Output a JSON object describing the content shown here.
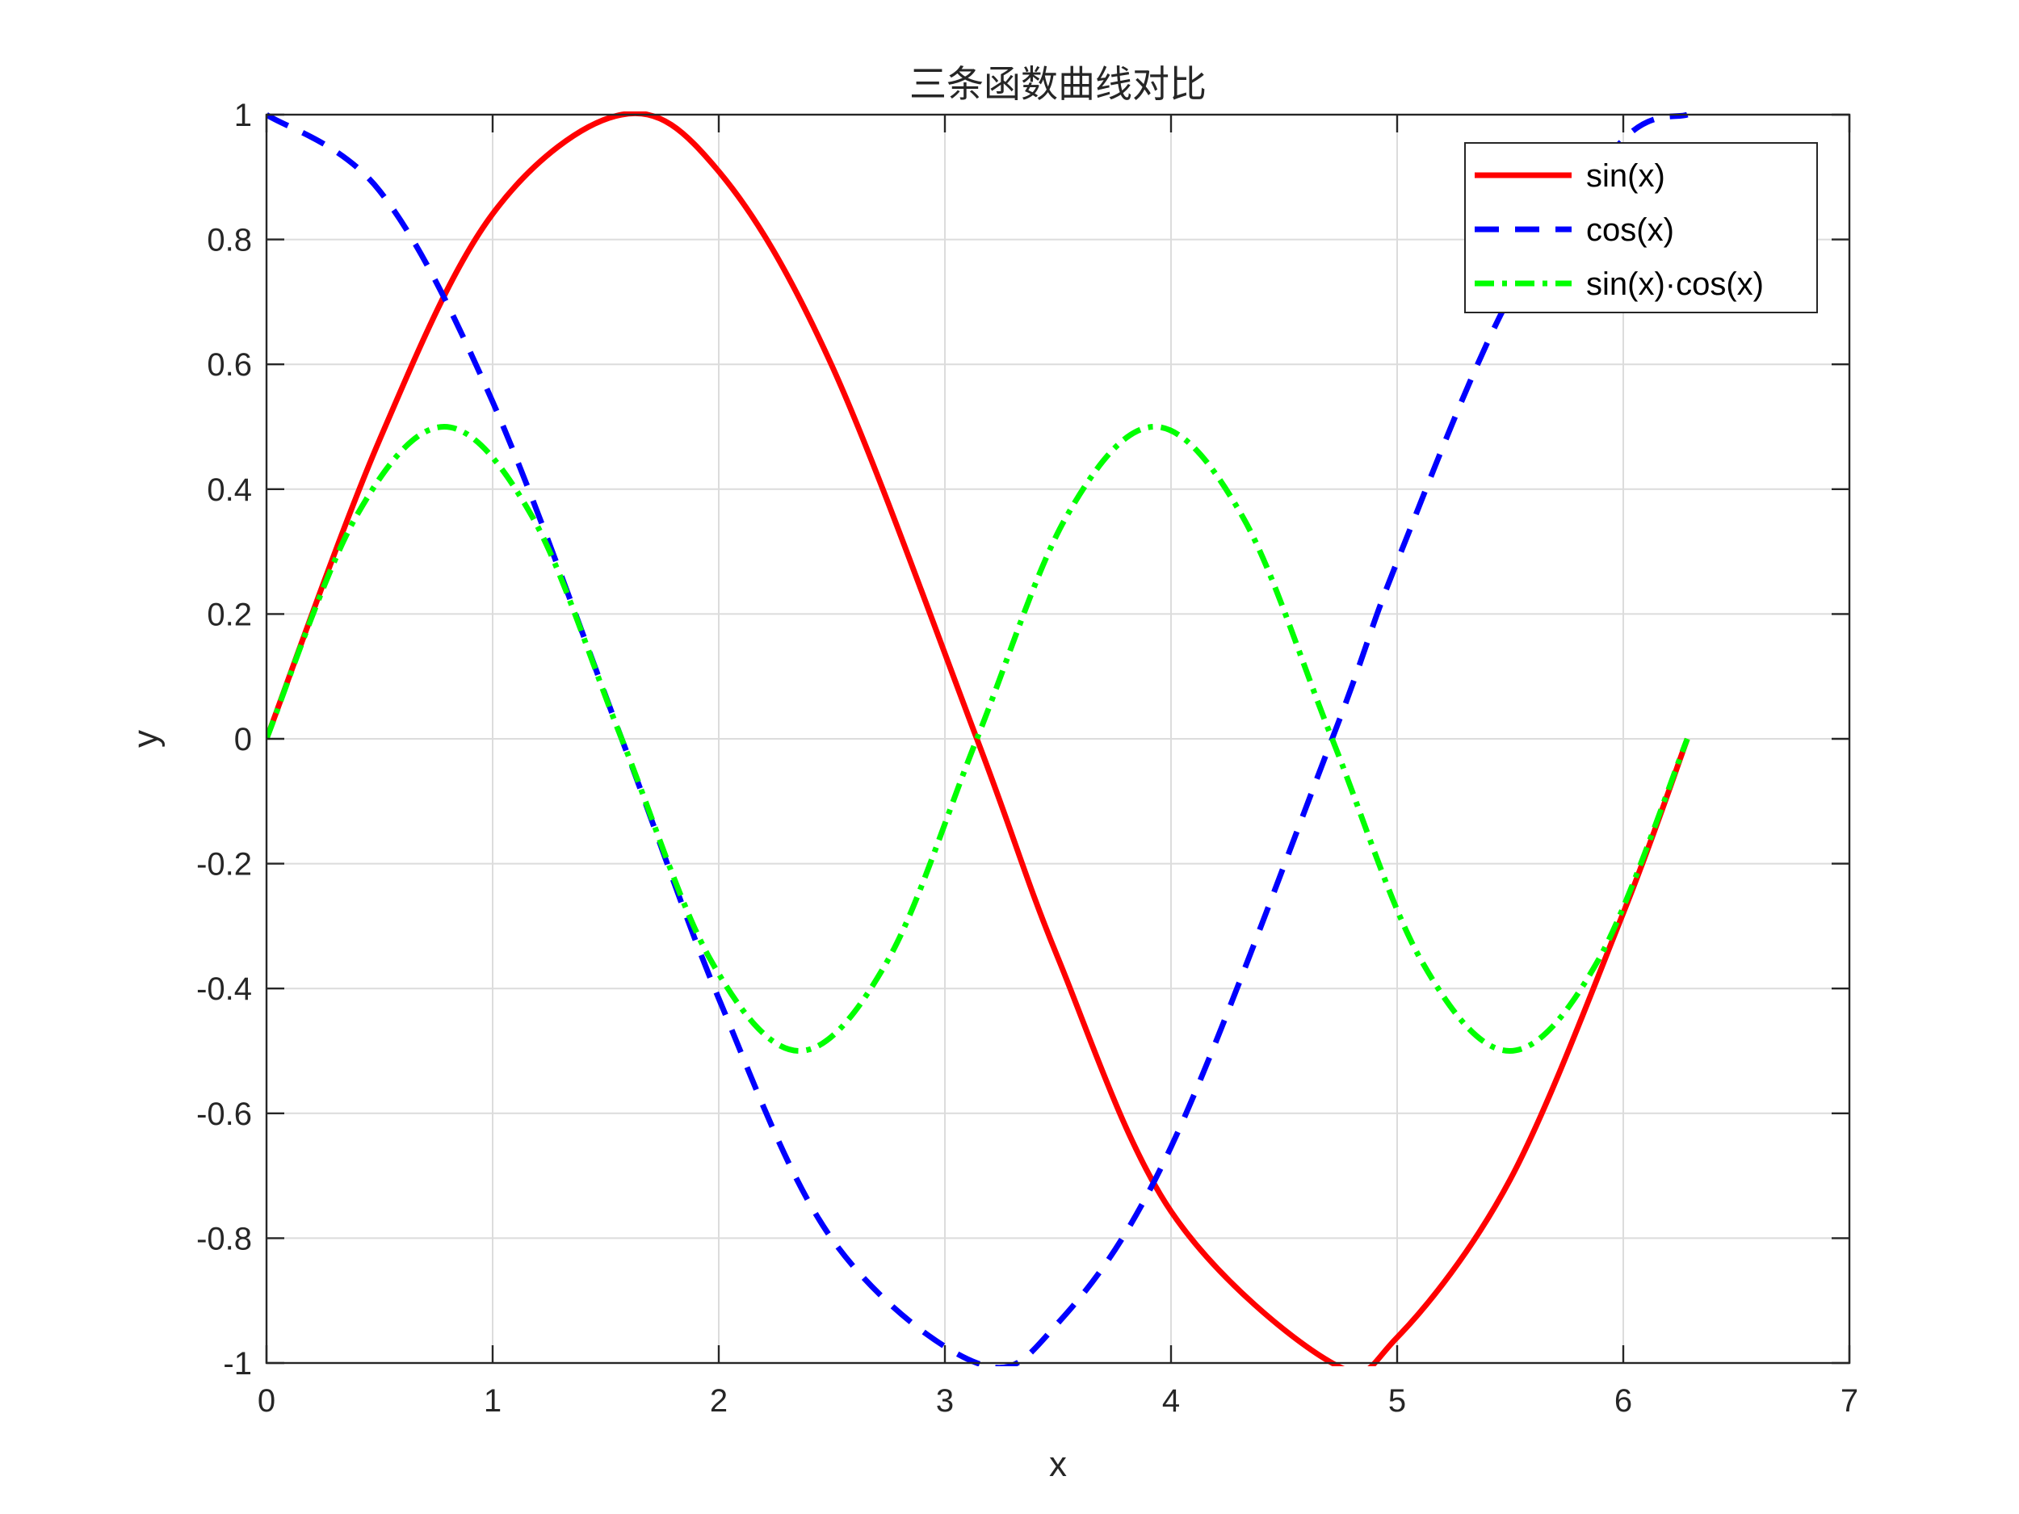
{
  "chart_data": {
    "type": "line",
    "title": "三条函数曲线对比",
    "xlabel": "x",
    "ylabel": "y",
    "xlim": [
      0,
      7
    ],
    "ylim": [
      -1,
      1
    ],
    "xticks": [
      "0",
      "1",
      "2",
      "3",
      "4",
      "5",
      "6",
      "7"
    ],
    "yticks": [
      "1",
      "0.8",
      "0.6",
      "0.4",
      "0.2",
      "0",
      "-0.2",
      "-0.4",
      "-0.6",
      "-0.8",
      "-1"
    ],
    "grid": true,
    "legend_position": "top-right",
    "x_range": [
      0,
      6.2832
    ],
    "series": [
      {
        "name": "sin(x)",
        "color": "#ff0000",
        "line_style": "solid",
        "x": [
          0,
          0.5,
          1.0,
          1.5708,
          2.0,
          2.5,
          3.1416,
          3.5,
          4.0,
          4.7124,
          5.0,
          5.5,
          6.0,
          6.2832
        ],
        "y": [
          0,
          0.479,
          0.841,
          1.0,
          0.909,
          0.598,
          0,
          -0.351,
          -0.757,
          -1.0,
          -0.959,
          -0.706,
          -0.279,
          0
        ]
      },
      {
        "name": "cos(x)",
        "color": "#0000ff",
        "line_style": "dashed",
        "x": [
          0,
          0.5,
          1.0,
          1.5708,
          2.0,
          2.5,
          3.1416,
          3.5,
          4.0,
          4.7124,
          5.0,
          5.5,
          6.0,
          6.2832
        ],
        "y": [
          1.0,
          0.878,
          0.54,
          0,
          -0.416,
          -0.801,
          -1.0,
          -0.936,
          -0.654,
          0,
          0.284,
          0.709,
          0.96,
          1.0
        ]
      },
      {
        "name": "sin(x)·cos(x)",
        "color": "#00ff00",
        "line_style": "dash-dot",
        "x": [
          0,
          0.3927,
          0.7854,
          1.1781,
          1.5708,
          1.9635,
          2.3562,
          2.7489,
          3.1416,
          3.5343,
          3.927,
          4.3197,
          4.7124,
          5.1051,
          5.4978,
          5.8905,
          6.2832
        ],
        "y": [
          0,
          0.354,
          0.5,
          0.354,
          0,
          -0.354,
          -0.5,
          -0.354,
          0,
          0.354,
          0.5,
          0.354,
          0,
          -0.354,
          -0.5,
          -0.354,
          0
        ]
      }
    ]
  }
}
